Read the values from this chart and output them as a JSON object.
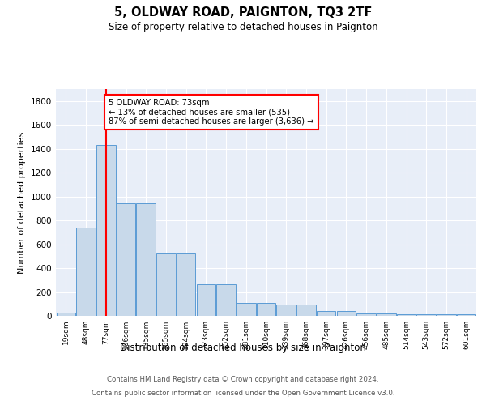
{
  "title": "5, OLDWAY ROAD, PAIGNTON, TQ3 2TF",
  "subtitle": "Size of property relative to detached houses in Paignton",
  "xlabel": "Distribution of detached houses by size in Paignton",
  "ylabel": "Number of detached properties",
  "bar_labels": [
    "19sqm",
    "48sqm",
    "77sqm",
    "106sqm",
    "135sqm",
    "165sqm",
    "194sqm",
    "223sqm",
    "252sqm",
    "281sqm",
    "310sqm",
    "339sqm",
    "368sqm",
    "397sqm",
    "426sqm",
    "456sqm",
    "485sqm",
    "514sqm",
    "543sqm",
    "572sqm",
    "601sqm"
  ],
  "bar_values": [
    25,
    740,
    1430,
    940,
    940,
    530,
    530,
    265,
    265,
    110,
    110,
    95,
    95,
    42,
    42,
    22,
    22,
    14,
    14,
    14,
    14
  ],
  "bar_color": "#c8d9ea",
  "bar_edge_color": "#5b9bd5",
  "vline_x_index": 2,
  "vline_color": "red",
  "annotation_text": "5 OLDWAY ROAD: 73sqm\n← 13% of detached houses are smaller (535)\n87% of semi-detached houses are larger (3,636) →",
  "annotation_box_color": "white",
  "annotation_box_edge": "red",
  "ylim": [
    0,
    1900
  ],
  "yticks": [
    0,
    200,
    400,
    600,
    800,
    1000,
    1200,
    1400,
    1600,
    1800
  ],
  "background_color": "#e8eef8",
  "grid_color": "white",
  "footer_line1": "Contains HM Land Registry data © Crown copyright and database right 2024.",
  "footer_line2": "Contains public sector information licensed under the Open Government Licence v3.0."
}
